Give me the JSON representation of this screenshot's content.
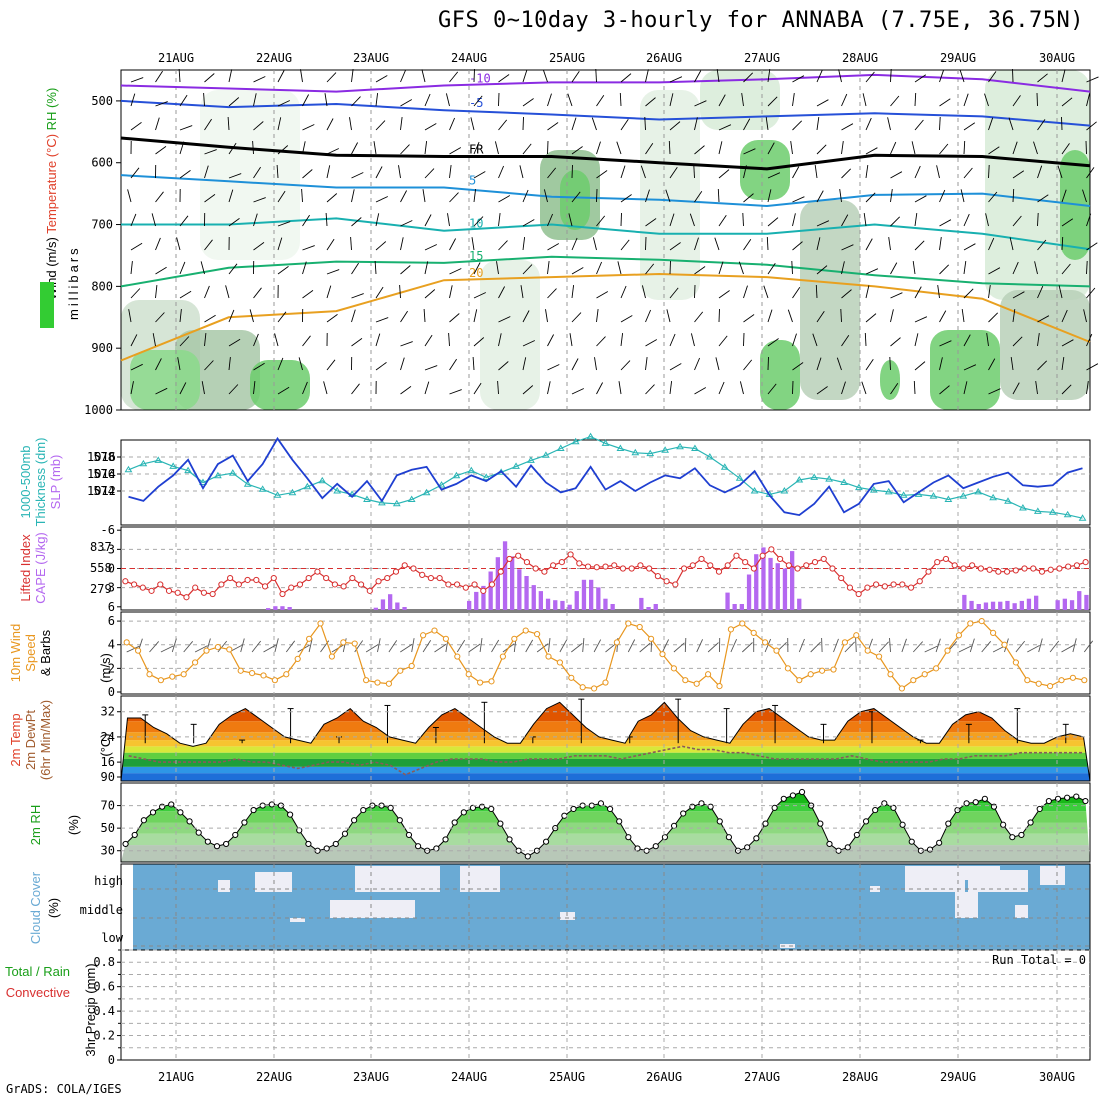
{
  "title": "GFS 0~10day 3-hourly for ANNABA (7.75E, 36.75N)",
  "credit": "GrADS: COLA/IGES",
  "run_total": "Run Total = 0",
  "colors": {
    "temp_label": "#e0402a",
    "wind_label": "#000000",
    "rh_label": "#1a9f1a",
    "thick": "#2ab5b5",
    "slp": "#1f3fd1",
    "cape": "#b468f0",
    "li": "#d83030",
    "wind10": "#e8961e",
    "cloud": "#6aaad4",
    "fr": "#000000"
  },
  "chart_data": {
    "type": "meteogram",
    "dates": [
      "21AUG",
      "22AUG",
      "23AUG",
      "24AUG",
      "25AUG",
      "26AUG",
      "27AUG",
      "28AUG",
      "29AUG",
      "30AUG"
    ],
    "panels": [
      {
        "id": "profile",
        "label_parts": [
          {
            "text": "Wind (m/s)",
            "color": "#000000"
          },
          {
            "text": " Temperature (°C)",
            "color": "#e0402a"
          },
          {
            "text": " RH (%)",
            "color": "#1a9f1a"
          }
        ],
        "ylabel": "millibars",
        "yticks": [
          500,
          600,
          700,
          800,
          900,
          1000
        ],
        "isotherms": [
          {
            "label": "-10",
            "color": "#8a2be2",
            "values": [
              -10,
              -10,
              -10,
              -10,
              -10,
              -10,
              -10,
              -10,
              -10,
              -10
            ]
          },
          {
            "label": "-5",
            "color": "#2650d8",
            "values": [
              -5,
              -5,
              -5,
              -5,
              -5,
              -5,
              -5,
              -5,
              -5,
              -5
            ]
          },
          {
            "label": "FR",
            "color": "#000000",
            "values": [
              0,
              0,
              0,
              0,
              0,
              0,
              0,
              0,
              0,
              0
            ]
          },
          {
            "label": "5",
            "color": "#1e90d8",
            "values": [
              5,
              5,
              5,
              5,
              5,
              5,
              5,
              5,
              5,
              5
            ]
          },
          {
            "label": "10",
            "color": "#18b0b0",
            "values": [
              10,
              10,
              10,
              10,
              10,
              10,
              10,
              10,
              10,
              10
            ]
          },
          {
            "label": "15",
            "color": "#18b070",
            "values": [
              15,
              15,
              15,
              15,
              15,
              15,
              15,
              15,
              15,
              15
            ]
          },
          {
            "label": "20",
            "color": "#e8a020",
            "values": [
              20,
              20,
              20,
              20,
              20,
              20,
              20,
              20,
              20,
              20
            ]
          }
        ],
        "isotherm_levels_mb": {
          "-10": [
            475,
            480,
            485,
            475,
            470,
            470,
            465,
            458,
            465,
            485
          ],
          "-5": [
            500,
            510,
            505,
            515,
            522,
            530,
            525,
            520,
            525,
            540
          ],
          "FR": [
            560,
            575,
            588,
            590,
            590,
            600,
            610,
            588,
            590,
            605
          ],
          "5": [
            620,
            630,
            640,
            640,
            655,
            660,
            670,
            652,
            650,
            670
          ],
          "10": [
            700,
            700,
            690,
            710,
            700,
            715,
            715,
            700,
            715,
            740
          ],
          "15": [
            800,
            770,
            760,
            762,
            752,
            757,
            765,
            782,
            795,
            800
          ],
          "20": [
            920,
            850,
            840,
            790,
            785,
            780,
            785,
            800,
            820,
            890
          ]
        },
        "rh_labels": [
          "10",
          "30",
          "50",
          "30",
          "30",
          "30",
          "30"
        ]
      },
      {
        "id": "thick_slp",
        "label_parts": [
          {
            "text": "1000-500mb",
            "color": "#2ab5b5"
          },
          {
            "text": "Thickness (dm)",
            "color": "#2ab5b5"
          },
          {
            "text": "SLP (mb)",
            "color": "#b468f0"
          }
        ],
        "left_ticks": [
          "578",
          "576",
          "574"
        ],
        "right_ticks": [
          "1016",
          "1014",
          "1012"
        ],
        "thickness": [
          576.5,
          577.2,
          577.6,
          576.9,
          576.4,
          575.0,
          575.8,
          576.1,
          574.8,
          574.2,
          573.5,
          573.8,
          574.5,
          575.2,
          574.0,
          573.6,
          573.0,
          572.6,
          572.5,
          573.0,
          573.8,
          574.7,
          575.8,
          576.4,
          575.6,
          576.2,
          576.9,
          577.6,
          578.2,
          579.0,
          579.8,
          580.4,
          579.6,
          579.0,
          578.5,
          578.4,
          578.8,
          579.2,
          579.0,
          578.0,
          576.8,
          575.5,
          574.0,
          573.6,
          574.0,
          575.3,
          575.6,
          575.4,
          575.0,
          574.4,
          574.1,
          573.9,
          573.5,
          573.6,
          573.4,
          573.0,
          573.4,
          573.9,
          573.2,
          572.8,
          572.0,
          571.6,
          571.5,
          571.2,
          570.8
        ],
        "slp": [
          1013.5,
          1013.2,
          1014.2,
          1015.0,
          1016.1,
          1014.1,
          1015.8,
          1016.4,
          1014.6,
          1015.8,
          1017.6,
          1016.1,
          1014.8,
          1013.4,
          1014.4,
          1013.5,
          1014.6,
          1013.2,
          1015.0,
          1015.4,
          1015.6,
          1014.0,
          1014.4,
          1015.0,
          1014.6,
          1015.3,
          1014.2,
          1015.7,
          1014.5,
          1013.8,
          1014.1,
          1015.6,
          1014.0,
          1014.6,
          1013.9,
          1014.5,
          1015.0,
          1014.8,
          1015.5,
          1014.3,
          1013.8,
          1014.3,
          1015.3,
          1013.6,
          1012.4,
          1012.2,
          1013.0,
          1014.2,
          1012.4,
          1013.0,
          1014.4,
          1014.6,
          1013.1,
          1013.8,
          1014.5,
          1015.0,
          1014.1,
          1014.5,
          1014.9,
          1015.2,
          1014.3,
          1014.2,
          1014.3,
          1015.2,
          1015.5
        ]
      },
      {
        "id": "cape_li",
        "label_parts": [
          {
            "text": "Lifted Index",
            "color": "#d83030"
          },
          {
            "text": "CAPE (J/kg)",
            "color": "#b468f0"
          }
        ],
        "left_ticks": [
          "-6",
          "-3",
          "0",
          "3",
          "6"
        ],
        "right_ticks": [
          "837",
          "558",
          "279"
        ],
        "cape": [
          0,
          0,
          0,
          0,
          0,
          0,
          0,
          0,
          0,
          0,
          0,
          0,
          0,
          0,
          0,
          0,
          0,
          0,
          0,
          0,
          25,
          50,
          50,
          40,
          0,
          0,
          0,
          0,
          0,
          0,
          0,
          0,
          0,
          0,
          0,
          30,
          140,
          210,
          100,
          40,
          0,
          0,
          0,
          0,
          0,
          0,
          0,
          0,
          120,
          240,
          320,
          510,
          700,
          910,
          710,
          540,
          450,
          330,
          250,
          150,
          130,
          120,
          70,
          250,
          400,
          400,
          300,
          150,
          80,
          0,
          0,
          0,
          160,
          40,
          80,
          0,
          0,
          0,
          0,
          0,
          0,
          0,
          0,
          0,
          230,
          80,
          80,
          470,
          740,
          830,
          690,
          620,
          550,
          780,
          150,
          0,
          0,
          0,
          0,
          0,
          0,
          0,
          0,
          0,
          0,
          0,
          0,
          0,
          0,
          0,
          0,
          0,
          0,
          0,
          0,
          0,
          0,
          200,
          120,
          80,
          100,
          110,
          110,
          120,
          90,
          120,
          150,
          190,
          0,
          0,
          130,
          150,
          130,
          250,
          200
        ],
        "li": [
          2,
          2.5,
          3,
          3.5,
          2.5,
          3.5,
          3.8,
          4.5,
          3,
          3.8,
          4,
          2.5,
          1.5,
          2.5,
          1.8,
          1.8,
          2.8,
          1.5,
          4,
          3,
          2.5,
          1.5,
          0.5,
          1.5,
          2.5,
          2.8,
          1.5,
          2.5,
          3.5,
          2,
          1.5,
          0.5,
          -0.5,
          0,
          1,
          1.5,
          1.5,
          2.5,
          2.5,
          3,
          2.5,
          3.5,
          2.5,
          0.5,
          -1.5,
          -2,
          -1,
          0,
          0.5,
          -0.5,
          -1,
          -2.2,
          -0.8,
          -0.3,
          -0.2,
          -0.3,
          -0.5,
          0,
          0,
          -0.5,
          0,
          1.2,
          2,
          2.5,
          0,
          -0.5,
          -1.5,
          -0.5,
          0.5,
          -0.5,
          -2,
          -1,
          0,
          -2,
          -3,
          -1.5,
          -0.5,
          0,
          -0.5,
          -1,
          -1.5,
          0,
          1.5,
          3,
          4,
          3,
          2.5,
          2.8,
          2.5,
          2.5,
          3,
          2,
          0.5,
          -1,
          -1.5,
          -0.5,
          0,
          -0.5,
          0,
          0.2,
          0.5,
          0.5,
          0.3,
          0,
          0,
          0.5,
          0.2,
          0,
          -0.3,
          -0.5,
          -1
        ],
        "li_zero_line": true
      },
      {
        "id": "wind10",
        "label_parts": [
          {
            "text": "10m Wind",
            "color": "#e8961e"
          },
          {
            "text": "Speed",
            "color": "#e8961e"
          },
          {
            "text": "& Barbs",
            "color": "#000000"
          }
        ],
        "left_ticks": [
          "6",
          "4",
          "2",
          "0"
        ],
        "ylabel": "(m/s)",
        "speed": [
          4.2,
          3.5,
          1.5,
          1.0,
          1.3,
          1.5,
          2.5,
          3.5,
          3.8,
          3.6,
          1.8,
          1.6,
          1.4,
          1.0,
          1.5,
          2.8,
          4.5,
          5.8,
          3.0,
          4.2,
          4.1,
          1.0,
          0.8,
          0.7,
          1.8,
          2.2,
          4.8,
          5.2,
          4.5,
          3.0,
          1.5,
          0.8,
          0.9,
          3.0,
          4.5,
          5.2,
          4.9,
          3.0,
          2.5,
          1.2,
          0.4,
          0.3,
          0.8,
          4.2,
          5.8,
          5.5,
          4.5,
          3.2,
          2.0,
          1.0,
          0.7,
          1.5,
          0.5,
          5.3,
          5.8,
          5.0,
          4.2,
          3.5,
          2.0,
          1.0,
          1.5,
          1.8,
          1.9,
          4.2,
          4.8,
          3.5,
          3.0,
          1.5,
          0.3,
          1.0,
          1.5,
          2.0,
          3.5,
          4.8,
          5.8,
          6.0,
          5.0,
          4.0,
          2.5,
          1.0,
          0.7,
          0.5,
          1.0,
          1.2,
          1.0
        ],
        "barbs": true
      },
      {
        "id": "temp2m",
        "label_parts": [
          {
            "text": "2m Temp",
            "color": "#e0402a"
          },
          {
            "text": "2m DewPt",
            "color": "#a05a2c"
          },
          {
            "text": "(6hr Min/Max)",
            "color": "#a05a2c"
          }
        ],
        "ylabel": "(°C)",
        "left_ticks": [
          "32",
          "24",
          "16",
          "90"
        ],
        "temp": [
          30,
          30,
          27,
          25,
          22,
          21,
          22,
          28,
          31,
          33,
          30,
          27,
          24,
          23,
          22,
          28,
          30,
          33,
          29,
          27,
          24,
          23,
          22,
          27,
          31,
          33,
          30,
          27,
          24,
          22,
          22,
          28,
          33,
          35,
          31,
          27,
          24,
          23,
          22,
          29,
          31,
          35,
          30,
          26,
          24,
          23,
          22,
          28,
          32,
          33,
          30,
          27,
          24,
          23,
          23,
          29,
          32,
          33,
          30,
          27,
          24,
          22,
          22,
          28,
          31,
          32,
          30,
          26,
          23,
          22,
          22,
          24,
          25,
          24
        ],
        "tmax_bars": [
          31,
          28,
          23,
          33,
          24,
          34,
          27,
          35,
          24,
          36,
          24,
          36,
          33,
          34,
          28,
          32,
          23,
          28,
          33,
          28
        ],
        "dewpt": [
          18,
          17,
          16,
          16,
          16,
          16,
          16,
          17,
          16,
          16,
          15,
          14,
          15,
          16,
          16,
          15,
          16,
          15,
          12,
          14,
          16,
          17,
          17,
          17,
          16,
          16,
          17,
          17,
          17,
          18,
          18,
          18,
          17,
          18,
          19,
          20,
          21,
          20,
          20,
          19,
          19,
          18,
          17,
          17,
          17,
          17,
          17,
          18,
          17,
          16,
          16,
          16,
          16,
          17,
          17,
          18,
          18,
          18,
          19,
          19,
          19,
          19,
          19
        ]
      },
      {
        "id": "rh2m",
        "label_parts": [
          {
            "text": "2m RH",
            "color": "#1a9f1a"
          },
          {
            "text": "(%)",
            "color": "#000000"
          }
        ],
        "left_ticks": [
          "70",
          "50",
          "30"
        ],
        "rh": [
          36,
          44,
          57,
          64,
          69,
          71,
          64,
          56,
          46,
          38,
          34,
          36,
          44,
          55,
          66,
          70,
          71,
          70,
          62,
          48,
          36,
          30,
          32,
          36,
          45,
          57,
          66,
          70,
          70,
          68,
          57,
          44,
          34,
          30,
          32,
          40,
          55,
          64,
          68,
          69,
          67,
          54,
          40,
          30,
          25,
          30,
          38,
          50,
          61,
          67,
          70,
          70,
          72,
          67,
          56,
          42,
          32,
          30,
          34,
          42,
          52,
          63,
          69,
          72,
          69,
          56,
          42,
          30,
          33,
          41,
          54,
          68,
          76,
          79,
          82,
          70,
          54,
          36,
          30,
          33,
          44,
          56,
          66,
          72,
          68,
          53,
          38,
          30,
          31,
          37,
          54,
          66,
          72,
          73,
          76,
          69,
          53,
          42,
          44,
          55,
          67,
          74,
          76,
          77,
          78,
          74
        ]
      },
      {
        "id": "cloud",
        "label_parts": [
          {
            "text": "Cloud Cover",
            "color": "#6aaad4"
          },
          {
            "text": "(%)",
            "color": "#000000"
          }
        ],
        "levels": [
          "high",
          "middle",
          "low"
        ]
      },
      {
        "id": "precip",
        "label_parts": [
          {
            "text": "Total / Rain",
            "color": "#1a9f1a"
          },
          {
            "text": "Convective",
            "color": "#d83030"
          },
          {
            "text": "3hr Precip (mm)",
            "color": "#000000"
          }
        ],
        "left_ticks": [
          "0.8",
          "0.6",
          "0.4",
          "0.2",
          "0"
        ],
        "values": [
          0
        ]
      }
    ]
  }
}
